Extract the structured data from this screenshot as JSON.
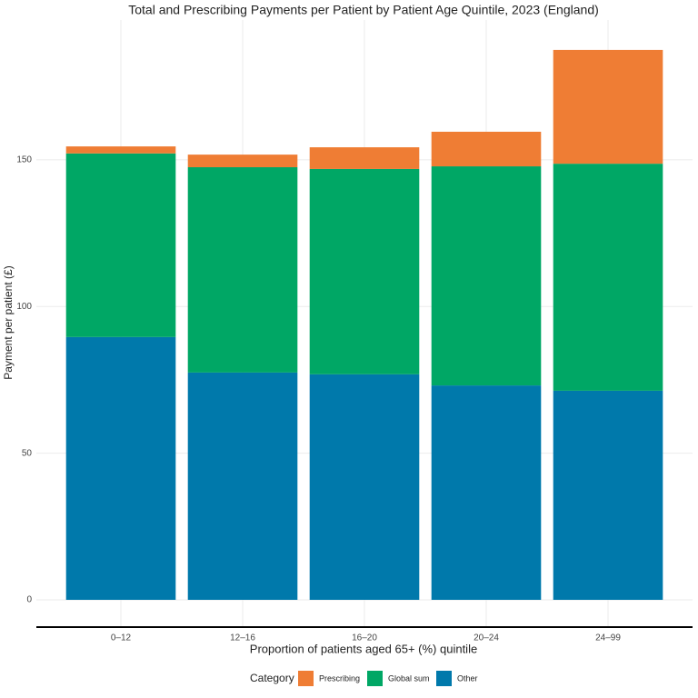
{
  "chart_data": {
    "type": "stacked_bar",
    "title": "Total and Prescribing Payments per Patient by Patient Age Quintile, 2023 (England)",
    "x_label": "Proportion of patients aged 65+ (%) quintile",
    "y_label": "Payment per patient (£)",
    "legend_title": "Category",
    "categories": [
      "0–12",
      "12–16",
      "16–20",
      "20–24",
      "24–99"
    ],
    "series": [
      {
        "name": "Prescribing",
        "color": "#ef7d34",
        "values": [
          2.4,
          4.3,
          7.4,
          11.8,
          38.8
        ]
      },
      {
        "name": "Global sum",
        "color": "#00a765",
        "values": [
          62.6,
          70.0,
          70.0,
          74.7,
          77.4
        ]
      },
      {
        "name": "Other",
        "color": "#0079ab",
        "values": [
          89.6,
          77.5,
          76.9,
          73.1,
          71.3
        ]
      }
    ],
    "ylim": [
      -9.3,
      197.7
    ],
    "yticks": [
      0,
      50,
      100,
      150
    ],
    "grid": true
  }
}
